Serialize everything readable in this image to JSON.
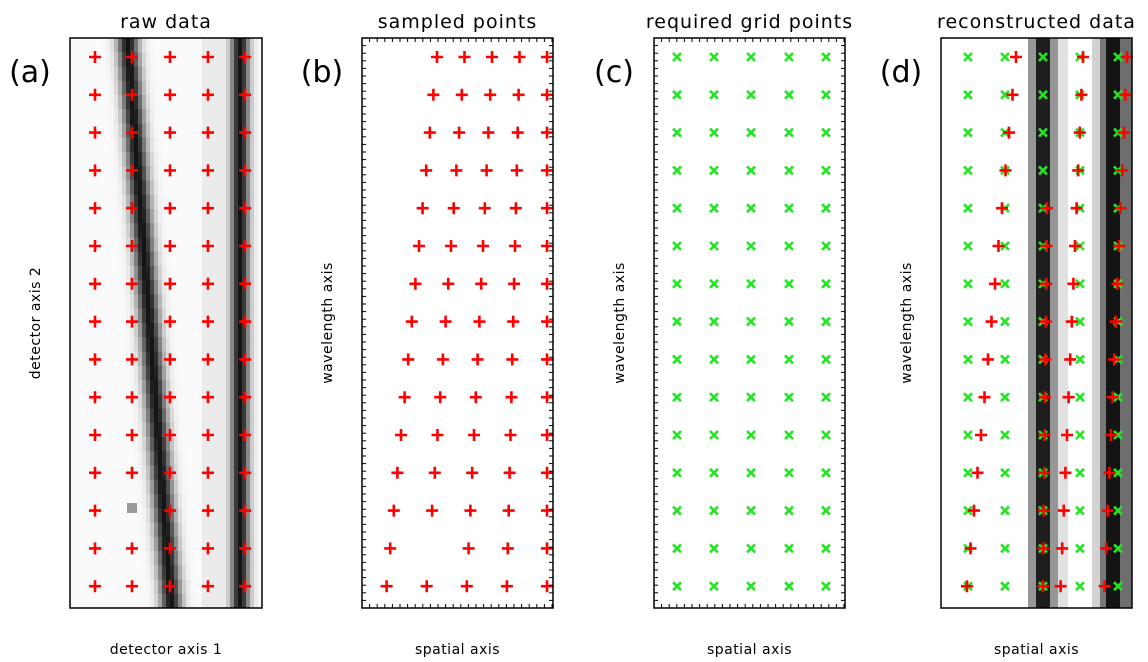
{
  "panels": [
    {
      "label": "(a)",
      "title": "raw data",
      "x_label": "detector axis 1",
      "y_label": "detector axis 2"
    },
    {
      "label": "(b)",
      "title": "sampled points",
      "x_label": "spatial axis",
      "y_label": "wavelength axis"
    },
    {
      "label": "(c)",
      "title": "required grid points",
      "x_label": "spatial axis",
      "y_label": "wavelength axis"
    },
    {
      "label": "(d)",
      "title": "reconstructed data",
      "x_label": "spatial axis",
      "y_label": "wavelength axis"
    }
  ]
}
